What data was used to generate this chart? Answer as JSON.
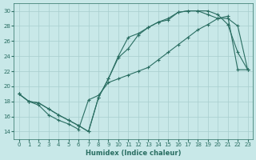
{
  "xlabel": "Humidex (Indice chaleur)",
  "bg_color": "#c8e8e8",
  "line_color": "#2a6e62",
  "grid_color": "#a8cece",
  "xlim": [
    -0.5,
    23.5
  ],
  "ylim": [
    13.0,
    31.0
  ],
  "yticks": [
    14,
    16,
    18,
    20,
    22,
    24,
    26,
    28,
    30
  ],
  "xticks": [
    0,
    1,
    2,
    3,
    4,
    5,
    6,
    7,
    8,
    9,
    10,
    11,
    12,
    13,
    14,
    15,
    16,
    17,
    18,
    19,
    20,
    21,
    22,
    23
  ],
  "line1_x": [
    0,
    1,
    2,
    3,
    4,
    5,
    6,
    7,
    8,
    9,
    10,
    11,
    12,
    13,
    14,
    15,
    16,
    17,
    18,
    19,
    20,
    21,
    22,
    23
  ],
  "line1_y": [
    19.0,
    18.0,
    17.5,
    16.2,
    15.5,
    15.0,
    14.3,
    18.2,
    18.8,
    20.5,
    21.0,
    21.5,
    22.0,
    22.5,
    23.5,
    24.5,
    25.5,
    26.5,
    27.5,
    28.2,
    29.0,
    29.3,
    22.2,
    22.2
  ],
  "line2_x": [
    0,
    1,
    2,
    3,
    4,
    5,
    6,
    7,
    8,
    9,
    10,
    11,
    12,
    13,
    14,
    15,
    16,
    17,
    18,
    19,
    20,
    21,
    22,
    23
  ],
  "line2_y": [
    19.0,
    18.0,
    17.8,
    17.0,
    16.2,
    15.5,
    14.8,
    14.0,
    18.5,
    21.0,
    23.8,
    25.0,
    26.8,
    27.8,
    28.5,
    29.0,
    29.8,
    30.0,
    30.0,
    30.0,
    29.5,
    28.2,
    24.5,
    22.2
  ],
  "line3_x": [
    0,
    1,
    2,
    3,
    4,
    5,
    6,
    7,
    8,
    9,
    10,
    11,
    12,
    13,
    14,
    15,
    16,
    17,
    18,
    19,
    20,
    21,
    22,
    23
  ],
  "line3_y": [
    19.0,
    18.0,
    17.8,
    17.0,
    16.2,
    15.5,
    14.8,
    14.0,
    18.5,
    21.0,
    24.0,
    26.5,
    27.0,
    27.8,
    28.5,
    28.8,
    29.8,
    30.0,
    30.0,
    29.5,
    29.0,
    29.0,
    28.0,
    22.2
  ]
}
